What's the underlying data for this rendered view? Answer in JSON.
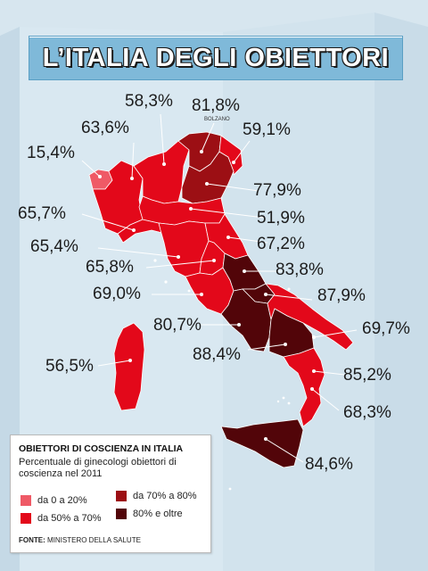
{
  "title": "L’ITALIA DEGLI OBIETTORI",
  "city_label": "BOLZANO",
  "regions": [
    {
      "name": "Valle d'Aosta",
      "value": "15,4%",
      "category": "da 0 a 20%"
    },
    {
      "name": "Piemonte",
      "value": "63,6%",
      "category": "da 50% a 70%"
    },
    {
      "name": "Lombardia",
      "value": "58,3%",
      "category": "da 50% a 70%"
    },
    {
      "name": "Trentino-Alto Adige (Bolzano)",
      "value": "81,8%",
      "category": "80% e oltre"
    },
    {
      "name": "Friuli-Venezia Giulia",
      "value": "59,1%",
      "category": "da 50% a 70%"
    },
    {
      "name": "Veneto",
      "value": "77,9%",
      "category": "da 70% a 80%"
    },
    {
      "name": "Liguria",
      "value": "65,7%",
      "category": "da 50% a 70%"
    },
    {
      "name": "Emilia-Romagna",
      "value": "51,9%",
      "category": "da 50% a 70%"
    },
    {
      "name": "Toscana",
      "value": "65,4%",
      "category": "da 50% a 70%"
    },
    {
      "name": "Marche",
      "value": "67,2%",
      "category": "da 50% a 70%"
    },
    {
      "name": "Umbria",
      "value": "65,8%",
      "category": "da 50% a 70%"
    },
    {
      "name": "Abruzzo",
      "value": "83,8%",
      "category": "80% e oltre"
    },
    {
      "name": "Lazio",
      "value": "69,0%",
      "category": "da 50% a 70%"
    },
    {
      "name": "Molise",
      "value": "87,9%",
      "category": "80% e oltre"
    },
    {
      "name": "Campania",
      "value": "80,7%",
      "category": "80% e oltre"
    },
    {
      "name": "Puglia",
      "value": "69,7%",
      "category": "da 50% a 70%"
    },
    {
      "name": "Basilicata",
      "value": "88,4%",
      "category": "80% e oltre"
    },
    {
      "name": "Sardegna",
      "value": "56,5%",
      "category": "da 50% a 70%"
    },
    {
      "name": "Calabria",
      "value": "85,2%",
      "category": "80% e oltre"
    },
    {
      "name": "Calabria-Sud",
      "value": "68,3%",
      "category": "da 50% a 70%"
    },
    {
      "name": "Sicilia",
      "value": "84,6%",
      "category": "80% e oltre"
    }
  ],
  "legend": {
    "title": "OBIETTORI DI COSCIENZA IN ITALIA",
    "subtitle": "Percentuale di ginecologi obiettori di coscienza nel 2011",
    "items": [
      {
        "label": "da 0 a 20%",
        "color": "#ef5a66"
      },
      {
        "label": "da 50% a 70%",
        "color": "#e3081a"
      },
      {
        "label": "da 70% a 80%",
        "color": "#9c0f14"
      },
      {
        "label": "80% e oltre",
        "color": "#520509"
      }
    ],
    "source_label": "FONTE:",
    "source": "MINISTERO DELLA SALUTE"
  },
  "colors": {
    "background": "#d7e6ef",
    "banner": "#7fb9d9",
    "low": "#ef5a66",
    "mid": "#e3081a",
    "high": "#9c0f14",
    "top": "#520509"
  }
}
